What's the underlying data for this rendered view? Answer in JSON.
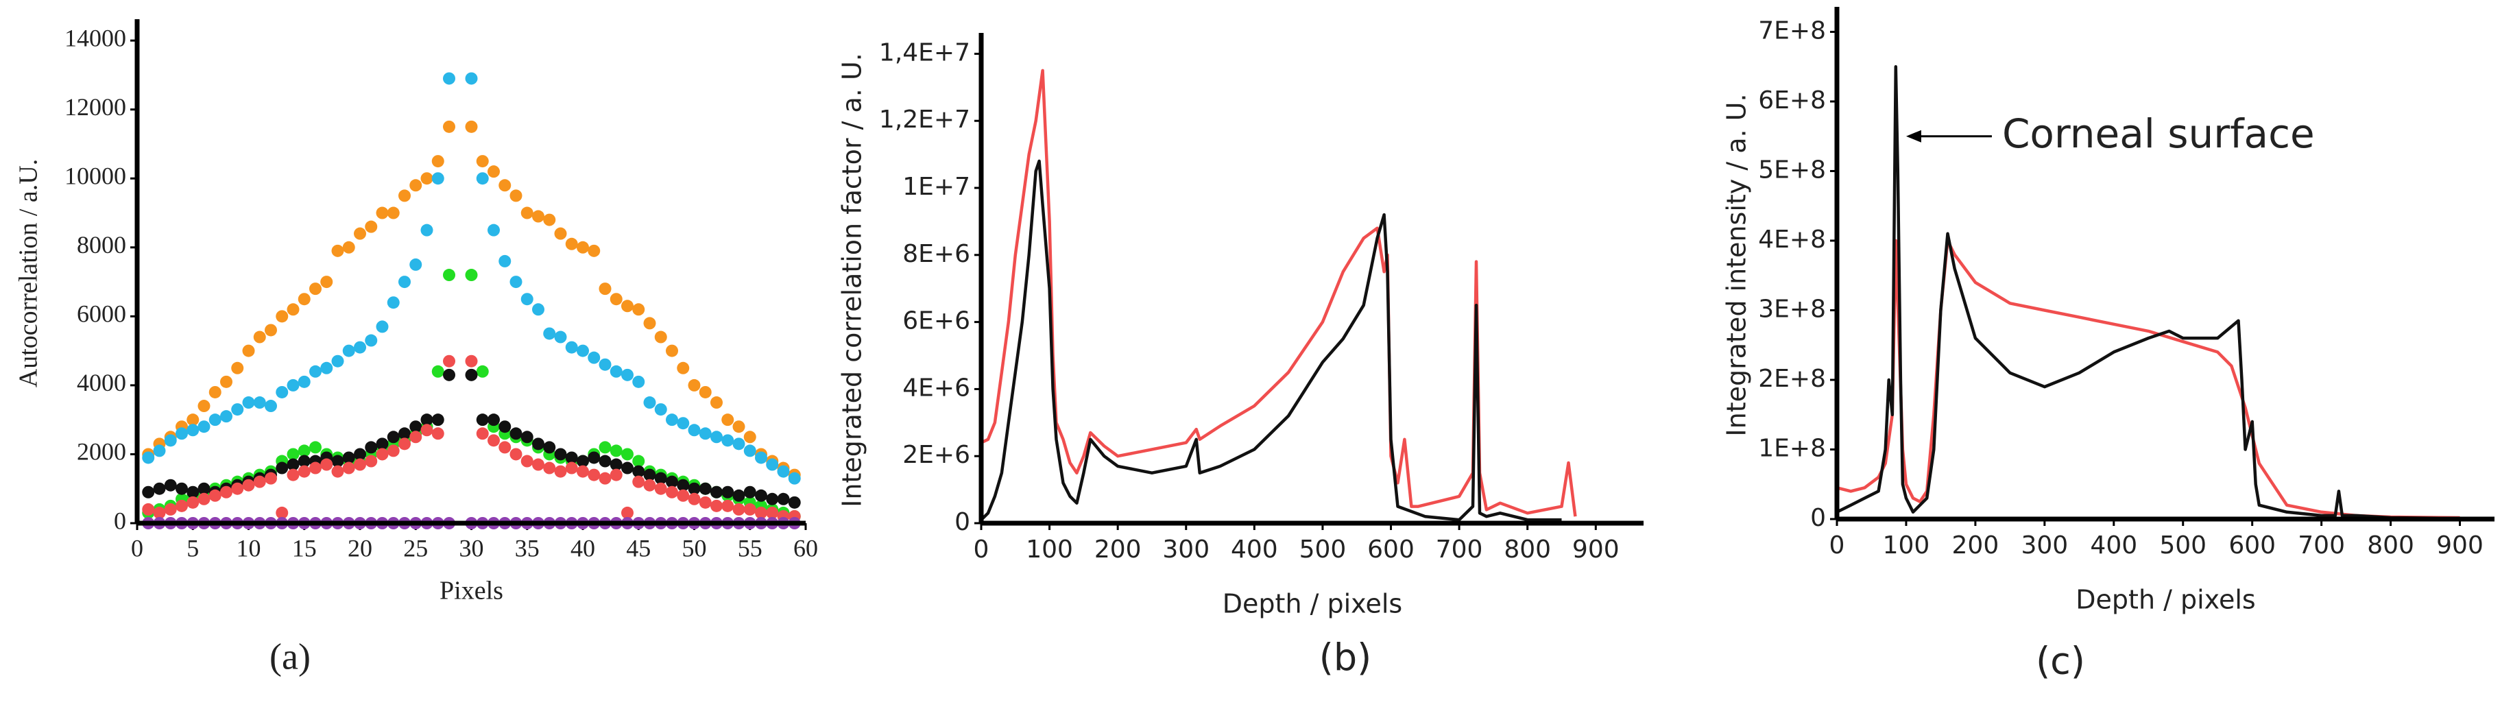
{
  "chart_data": [
    {
      "type": "scatter",
      "panel_label": "(a)",
      "x_label": "Pixels",
      "y_label": "Autocorrelation / a.U.",
      "x": [
        1,
        2,
        3,
        4,
        5,
        6,
        7,
        8,
        9,
        10,
        11,
        12,
        13,
        14,
        15,
        16,
        17,
        18,
        19,
        20,
        21,
        22,
        23,
        24,
        25,
        26,
        27,
        28,
        30,
        31,
        32,
        33,
        34,
        35,
        36,
        37,
        38,
        39,
        40,
        41,
        42,
        43,
        44,
        45,
        46,
        47,
        48,
        49,
        50,
        51,
        52,
        53,
        54,
        55,
        56,
        57,
        58,
        59
      ],
      "series": [
        {
          "color": "#f7941d",
          "values": [
            2000,
            2300,
            2500,
            2800,
            3000,
            3400,
            3800,
            4100,
            4500,
            5000,
            5400,
            5600,
            6000,
            6200,
            6500,
            6800,
            7000,
            7900,
            8000,
            8400,
            8600,
            9000,
            9000,
            9500,
            9800,
            10000,
            10500,
            11500,
            11500,
            10500,
            10200,
            9800,
            9500,
            9000,
            8900,
            8800,
            8400,
            8100,
            8000,
            7900,
            6800,
            6500,
            6300,
            6200,
            5800,
            5400,
            5000,
            4500,
            4000,
            3800,
            3500,
            3000,
            2800,
            2500,
            2000,
            1800,
            1600,
            1400
          ]
        },
        {
          "color": "#29b6e8",
          "values": [
            1900,
            2100,
            2400,
            2600,
            2700,
            2800,
            3000,
            3100,
            3300,
            3500,
            3500,
            3400,
            3800,
            4000,
            4100,
            4400,
            4500,
            4700,
            5000,
            5100,
            5300,
            5700,
            6400,
            7000,
            7500,
            8500,
            10000,
            12900,
            12900,
            10000,
            8500,
            7600,
            7000,
            6500,
            6200,
            5500,
            5400,
            5100,
            5000,
            4800,
            4600,
            4400,
            4300,
            4100,
            3500,
            3300,
            3000,
            2900,
            2700,
            2600,
            2500,
            2400,
            2300,
            2100,
            1900,
            1700,
            1500,
            1300
          ]
        },
        {
          "color": "#22dd22",
          "values": [
            300,
            400,
            500,
            700,
            800,
            900,
            1000,
            1100,
            1200,
            1300,
            1400,
            1500,
            1800,
            2000,
            2100,
            2200,
            2000,
            1900,
            1800,
            1800,
            2000,
            2200,
            2300,
            2400,
            2600,
            2800,
            4400,
            7200,
            7200,
            4400,
            2800,
            2600,
            2500,
            2400,
            2200,
            2000,
            1900,
            1800,
            1800,
            2000,
            2200,
            2100,
            2000,
            1800,
            1500,
            1400,
            1300,
            1200,
            1100,
            1000,
            900,
            800,
            700,
            600,
            500,
            400,
            300,
            200
          ]
        },
        {
          "color": "#111111",
          "values": [
            900,
            1000,
            1100,
            1000,
            900,
            1000,
            900,
            1000,
            1100,
            1200,
            1300,
            1400,
            1600,
            1700,
            1800,
            1800,
            1900,
            1800,
            1900,
            2000,
            2200,
            2300,
            2500,
            2600,
            2800,
            3000,
            3000,
            4300,
            4300,
            3000,
            3000,
            2800,
            2600,
            2500,
            2300,
            2200,
            2000,
            1900,
            1800,
            1900,
            1800,
            1700,
            1600,
            1500,
            1400,
            1300,
            1200,
            1100,
            1000,
            1000,
            900,
            900,
            800,
            900,
            800,
            700,
            700,
            600
          ]
        },
        {
          "color": "#f04e4e",
          "values": [
            400,
            300,
            400,
            500,
            600,
            700,
            800,
            900,
            1000,
            1100,
            1200,
            1300,
            300,
            1400,
            1500,
            1600,
            1700,
            1500,
            1600,
            1700,
            1800,
            2000,
            2100,
            2300,
            2500,
            2700,
            2600,
            4700,
            4700,
            2600,
            2400,
            2200,
            2000,
            1800,
            1700,
            1600,
            1500,
            1600,
            1500,
            1400,
            1300,
            1400,
            300,
            1200,
            1100,
            1000,
            900,
            800,
            700,
            600,
            500,
            500,
            400,
            400,
            300,
            300,
            200,
            200
          ]
        },
        {
          "color": "#8e3fb0",
          "values": [
            0,
            0,
            0,
            0,
            0,
            0,
            0,
            0,
            0,
            0,
            0,
            0,
            0,
            0,
            0,
            0,
            0,
            0,
            0,
            0,
            0,
            0,
            0,
            0,
            0,
            0,
            0,
            0,
            0,
            0,
            0,
            0,
            0,
            0,
            0,
            0,
            0,
            0,
            0,
            0,
            0,
            0,
            0,
            0,
            0,
            0,
            0,
            0,
            0,
            0,
            0,
            0,
            0,
            0,
            0,
            0,
            0,
            0
          ]
        }
      ],
      "xlim": [
        0,
        60
      ],
      "xticks": [
        0,
        5,
        10,
        15,
        20,
        25,
        30,
        35,
        40,
        45,
        50,
        55,
        60
      ],
      "ylim": [
        0,
        14500
      ],
      "yticks": [
        0,
        2000,
        4000,
        6000,
        8000,
        10000,
        12000,
        14000
      ]
    },
    {
      "type": "line",
      "panel_label": "(b)",
      "x_label": "Depth / pixels",
      "y_label": "Integrated correlation factor / a. U.",
      "series": [
        {
          "color": "#f04e4e",
          "x": [
            0,
            10,
            20,
            30,
            40,
            50,
            60,
            70,
            80,
            90,
            100,
            105,
            110,
            120,
            130,
            140,
            150,
            160,
            180,
            200,
            250,
            300,
            315,
            320,
            350,
            400,
            450,
            500,
            530,
            560,
            580,
            590,
            595,
            600,
            610,
            620,
            630,
            640,
            700,
            720,
            725,
            730,
            740,
            760,
            800,
            850,
            860,
            870
          ],
          "values": [
            2400000,
            2500000,
            3000000,
            4500000,
            6000000,
            8000000,
            9500000,
            11000000,
            12000000,
            13500000,
            9000000,
            5000000,
            3000000,
            2500000,
            1800000,
            1500000,
            2000000,
            2700000,
            2300000,
            2000000,
            2200000,
            2400000,
            2800000,
            2500000,
            2900000,
            3500000,
            4500000,
            6000000,
            7500000,
            8500000,
            8800000,
            7500000,
            8000000,
            2000000,
            1200000,
            2500000,
            500000,
            500000,
            800000,
            1500000,
            7800000,
            1500000,
            400000,
            600000,
            300000,
            500000,
            1800000,
            200000
          ]
        },
        {
          "color": "#111111",
          "x": [
            0,
            10,
            20,
            30,
            40,
            50,
            60,
            70,
            80,
            85,
            90,
            100,
            105,
            110,
            120,
            130,
            140,
            150,
            160,
            180,
            200,
            250,
            300,
            315,
            320,
            350,
            400,
            450,
            500,
            530,
            560,
            580,
            590,
            595,
            600,
            610,
            650,
            700,
            720,
            725,
            730,
            740,
            760,
            800,
            850
          ],
          "values": [
            100000,
            300000,
            800000,
            1500000,
            3000000,
            4500000,
            6000000,
            8000000,
            10500000,
            10800000,
            9500000,
            7000000,
            4000000,
            2500000,
            1200000,
            800000,
            600000,
            1500000,
            2500000,
            2000000,
            1700000,
            1500000,
            1700000,
            2500000,
            1500000,
            1700000,
            2200000,
            3200000,
            4800000,
            5500000,
            6500000,
            8500000,
            9200000,
            7500000,
            2500000,
            500000,
            200000,
            100000,
            500000,
            6500000,
            300000,
            200000,
            300000,
            100000,
            100000
          ]
        }
      ],
      "xlim": [
        0,
        970
      ],
      "xticks": [
        0,
        100,
        200,
        300,
        400,
        500,
        600,
        700,
        800,
        900
      ],
      "ylim": [
        0,
        14500000
      ],
      "yticks": [
        0,
        {
          "value": 2000000,
          "label": "2E+6"
        },
        {
          "value": 4000000,
          "label": "4E+6"
        },
        {
          "value": 6000000,
          "label": "6E+6"
        },
        {
          "value": 8000000,
          "label": "8E+6"
        },
        {
          "value": 10000000,
          "label": "1E+7"
        },
        {
          "value": 12000000,
          "label": "1,2E+7"
        },
        {
          "value": 14000000,
          "label": "1,4E+7"
        }
      ]
    },
    {
      "type": "line",
      "panel_label": "(c)",
      "x_label": "Depth / pixels",
      "y_label": "Integrated intensity / a. U.",
      "series": [
        {
          "color": "#f04e4e",
          "x": [
            0,
            20,
            40,
            60,
            70,
            80,
            85,
            90,
            95,
            100,
            110,
            120,
            130,
            140,
            150,
            160,
            170,
            200,
            250,
            300,
            350,
            400,
            450,
            500,
            550,
            570,
            590,
            600,
            610,
            650,
            700,
            750,
            800,
            900
          ],
          "values": [
            45000000,
            40000000,
            45000000,
            60000000,
            80000000,
            150000000,
            400000000,
            250000000,
            100000000,
            50000000,
            30000000,
            25000000,
            40000000,
            150000000,
            300000000,
            400000000,
            380000000,
            340000000,
            310000000,
            300000000,
            290000000,
            280000000,
            270000000,
            255000000,
            240000000,
            220000000,
            160000000,
            120000000,
            80000000,
            20000000,
            10000000,
            5000000,
            3000000,
            2000000
          ]
        },
        {
          "color": "#111111",
          "x": [
            0,
            20,
            40,
            60,
            70,
            75,
            80,
            85,
            88,
            92,
            95,
            100,
            110,
            120,
            130,
            140,
            150,
            160,
            170,
            200,
            250,
            300,
            350,
            400,
            450,
            480,
            500,
            550,
            580,
            585,
            590,
            600,
            605,
            610,
            650,
            700,
            720,
            725,
            730,
            750,
            800,
            900
          ],
          "values": [
            10000000,
            20000000,
            30000000,
            40000000,
            100000000,
            200000000,
            150000000,
            650000000,
            500000000,
            200000000,
            50000000,
            30000000,
            10000000,
            20000000,
            30000000,
            100000000,
            300000000,
            410000000,
            360000000,
            260000000,
            210000000,
            190000000,
            210000000,
            240000000,
            260000000,
            270000000,
            260000000,
            260000000,
            285000000,
            200000000,
            100000000,
            140000000,
            50000000,
            20000000,
            10000000,
            5000000,
            5000000,
            40000000,
            5000000,
            5000000,
            2000000,
            1000000
          ]
        }
      ],
      "annotations": [
        {
          "text": "Corneal surface",
          "x": 100,
          "y": 550000000
        }
      ],
      "xlim": [
        0,
        950
      ],
      "xticks": [
        0,
        100,
        200,
        300,
        400,
        500,
        600,
        700,
        800,
        900
      ],
      "ylim": [
        0,
        730000000
      ],
      "yticks": [
        0,
        {
          "value": 100000000,
          "label": "1E+8"
        },
        {
          "value": 200000000,
          "label": "2E+8"
        },
        {
          "value": 300000000,
          "label": "3E+8"
        },
        {
          "value": 400000000,
          "label": "4E+8"
        },
        {
          "value": 500000000,
          "label": "5E+8"
        },
        {
          "value": 600000000,
          "label": "6E+8"
        },
        {
          "value": 700000000,
          "label": "7E+8"
        }
      ]
    }
  ]
}
